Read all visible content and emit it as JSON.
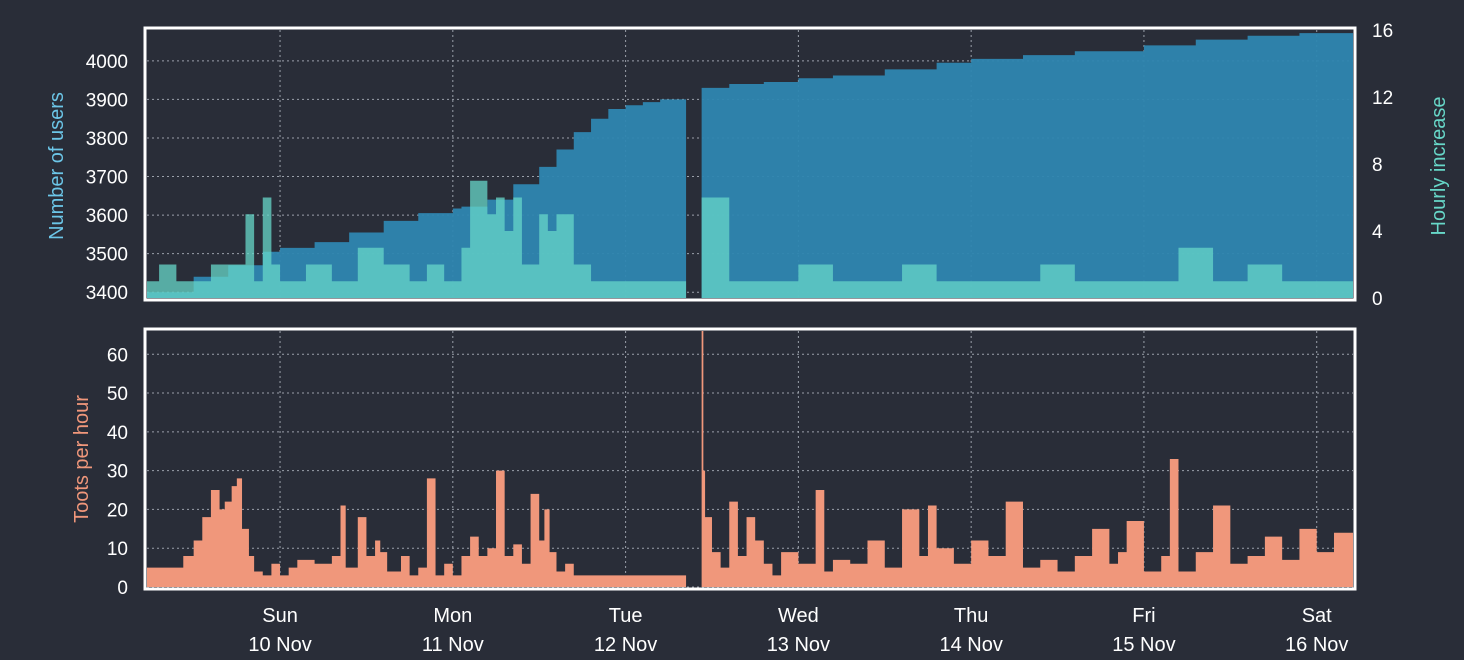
{
  "colors": {
    "background": "#292d38",
    "frame": "#ffffff",
    "grid": "#9aa0aa",
    "users_fill": "#2e86b0",
    "users_label": "#6cc6e8",
    "hourly_fill": "#67d7c8",
    "hourly_label": "#67d7c8",
    "toots_fill": "#f0977b",
    "toots_label": "#f0977b",
    "tick_text": "#ffffff"
  },
  "chart_data": [
    {
      "type": "area",
      "title": "",
      "x_unit": "days",
      "xlim": [
        -0.77,
        6.21
      ],
      "x_ticks": [
        {
          "x": 0,
          "day": "Sun",
          "date": "10 Nov"
        },
        {
          "x": 1,
          "day": "Mon",
          "date": "11 Nov"
        },
        {
          "x": 2,
          "day": "Tue",
          "date": "12 Nov"
        },
        {
          "x": 3,
          "day": "Wed",
          "date": "13 Nov"
        },
        {
          "x": 4,
          "day": "Thu",
          "date": "14 Nov"
        },
        {
          "x": 5,
          "day": "Fri",
          "date": "15 Nov"
        },
        {
          "x": 6,
          "day": "Sat",
          "date": "16 Nov"
        }
      ],
      "ylabel": "Number of users",
      "ylim": [
        3385,
        4080
      ],
      "yticks": [
        3400,
        3500,
        3600,
        3700,
        3800,
        3900,
        4000
      ],
      "y2label": "Hourly increase",
      "y2lim": [
        0,
        16
      ],
      "y2ticks": [
        0,
        4,
        8,
        12,
        16
      ],
      "grid": true,
      "gap": [
        2.35,
        2.44
      ],
      "series": [
        {
          "name": "Number of users",
          "axis": "left",
          "x": [
            -0.77,
            -0.5,
            -0.3,
            -0.1,
            0.0,
            0.2,
            0.4,
            0.6,
            0.8,
            1.0,
            1.05,
            1.2,
            1.35,
            1.5,
            1.6,
            1.7,
            1.8,
            1.9,
            2.0,
            2.1,
            2.2,
            2.35,
            2.44,
            2.6,
            2.8,
            3.0,
            3.2,
            3.5,
            3.8,
            4.0,
            4.3,
            4.6,
            5.0,
            5.3,
            5.6,
            5.9,
            6.21
          ],
          "values": [
            3400,
            3440,
            3470,
            3505,
            3515,
            3530,
            3555,
            3585,
            3605,
            3617,
            3622,
            3640,
            3680,
            3725,
            3770,
            3815,
            3850,
            3875,
            3885,
            3893,
            3900,
            3912,
            3930,
            3940,
            3945,
            3955,
            3962,
            3978,
            3995,
            4005,
            4015,
            4025,
            4040,
            4055,
            4065,
            4072,
            4080
          ]
        },
        {
          "name": "Hourly increase",
          "axis": "right",
          "x": [
            -0.77,
            -0.7,
            -0.6,
            -0.5,
            -0.4,
            -0.3,
            -0.2,
            -0.15,
            -0.1,
            -0.05,
            0.0,
            0.15,
            0.3,
            0.45,
            0.6,
            0.75,
            0.85,
            0.95,
            1.0,
            1.05,
            1.1,
            1.2,
            1.25,
            1.3,
            1.35,
            1.4,
            1.5,
            1.55,
            1.6,
            1.7,
            1.8,
            1.9,
            2.0,
            2.1,
            2.2,
            2.3,
            2.35,
            2.44,
            2.6,
            2.8,
            3.0,
            3.2,
            3.4,
            3.6,
            3.8,
            4.0,
            4.2,
            4.4,
            4.6,
            4.8,
            5.0,
            5.2,
            5.4,
            5.6,
            5.8,
            6.0,
            6.21
          ],
          "values": [
            1,
            2,
            1,
            1,
            2,
            2,
            5,
            1,
            6,
            2,
            1,
            2,
            1,
            3,
            2,
            1,
            2,
            1,
            1,
            3,
            7,
            5,
            6,
            4,
            6,
            2,
            5,
            4,
            5,
            2,
            1,
            1,
            1,
            1,
            1,
            1,
            0,
            6,
            1,
            1,
            2,
            1,
            1,
            2,
            1,
            1,
            1,
            2,
            1,
            1,
            1,
            3,
            1,
            2,
            1,
            1,
            1
          ]
        }
      ]
    },
    {
      "type": "area",
      "title": "",
      "x_unit": "days",
      "xlim": [
        -0.77,
        6.21
      ],
      "ylabel": "Toots per hour",
      "ylim": [
        0,
        66
      ],
      "yticks": [
        0,
        10,
        20,
        30,
        40,
        50,
        60
      ],
      "grid": true,
      "gap": [
        2.35,
        2.44
      ],
      "series": [
        {
          "name": "Toots per hour",
          "x": [
            -0.77,
            -0.57,
            -0.56,
            -0.5,
            -0.45,
            -0.4,
            -0.35,
            -0.32,
            -0.28,
            -0.25,
            -0.22,
            -0.18,
            -0.15,
            -0.1,
            -0.05,
            0.0,
            0.05,
            0.1,
            0.2,
            0.3,
            0.35,
            0.38,
            0.45,
            0.5,
            0.55,
            0.58,
            0.62,
            0.7,
            0.75,
            0.8,
            0.85,
            0.9,
            0.95,
            1.0,
            1.05,
            1.1,
            1.15,
            1.2,
            1.25,
            1.3,
            1.35,
            1.4,
            1.45,
            1.5,
            1.53,
            1.56,
            1.6,
            1.65,
            1.7,
            1.75,
            1.8,
            1.85,
            1.9,
            1.95,
            2.0,
            2.1,
            2.2,
            2.35,
            2.44,
            2.45,
            2.46,
            2.5,
            2.55,
            2.6,
            2.65,
            2.7,
            2.75,
            2.8,
            2.85,
            2.9,
            3.0,
            3.1,
            3.15,
            3.2,
            3.3,
            3.4,
            3.5,
            3.6,
            3.7,
            3.75,
            3.8,
            3.9,
            4.0,
            4.1,
            4.2,
            4.3,
            4.4,
            4.5,
            4.6,
            4.7,
            4.8,
            4.85,
            4.9,
            5.0,
            5.1,
            5.15,
            5.2,
            5.3,
            5.4,
            5.5,
            5.6,
            5.7,
            5.8,
            5.9,
            6.0,
            6.1,
            6.21
          ],
          "values": [
            5,
            5,
            8,
            12,
            18,
            25,
            20,
            22,
            26,
            28,
            15,
            8,
            4,
            3,
            6,
            3,
            5,
            7,
            6,
            8,
            21,
            5,
            18,
            8,
            12,
            9,
            4,
            8,
            3,
            5,
            28,
            3,
            6,
            3,
            8,
            13,
            8,
            10,
            30,
            8,
            11,
            6,
            24,
            12,
            20,
            9,
            4,
            6,
            3,
            3,
            3,
            3,
            3,
            3,
            3,
            3,
            3,
            3,
            66,
            30,
            18,
            9,
            5,
            22,
            8,
            18,
            12,
            6,
            3,
            9,
            6,
            25,
            4,
            7,
            6,
            12,
            5,
            20,
            8,
            21,
            10,
            6,
            12,
            8,
            22,
            5,
            7,
            4,
            8,
            15,
            6,
            9,
            17,
            4,
            8,
            33,
            4,
            9,
            21,
            6,
            8,
            13,
            7,
            15,
            9,
            14,
            3
          ]
        }
      ]
    }
  ]
}
